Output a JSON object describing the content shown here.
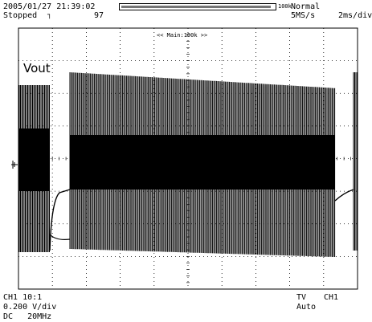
{
  "header": {
    "datetime": "2005/01/27 21:39:02",
    "status": "Stopped",
    "trigger_slope_icon": "rising-edge-icon",
    "acquisition_count": "97",
    "record_length": "100k",
    "acq_mode": "Normal",
    "sample_rate": "5MS/s",
    "time_per_div": "2ms/div"
  },
  "memory_bar": {
    "fill_fraction": 0.98
  },
  "display": {
    "zoom_label": "<< Main:100k >>",
    "signal_label": "Vout",
    "grid_divisions": {
      "x": 10,
      "y": 8
    }
  },
  "footer": {
    "channel": "CH1 10:1",
    "volts_per_div": "0.200 V/div",
    "coupling": "DC   20MHz",
    "trigger_type": "TV",
    "trigger_source": "CH1",
    "trigger_mode": "Auto"
  }
}
